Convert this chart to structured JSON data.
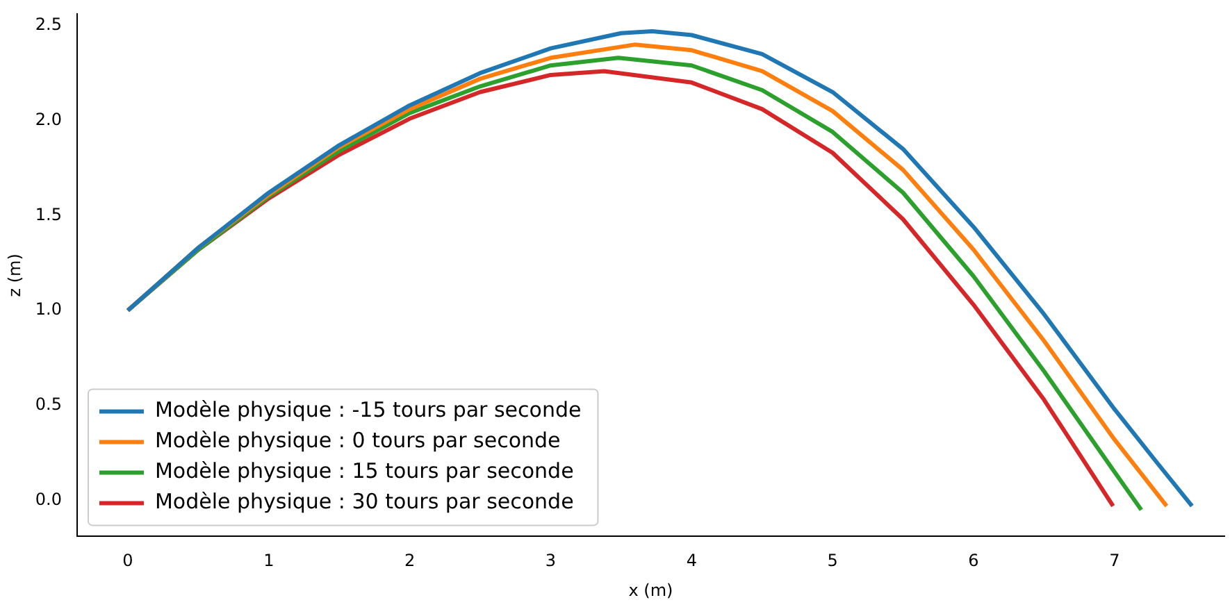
{
  "chart_data": {
    "type": "line",
    "xlabel": "x (m)",
    "ylabel": "z (m)",
    "xlim": [
      -0.36,
      7.78
    ],
    "ylim": [
      -0.19,
      2.56
    ],
    "xticks": [
      0,
      1,
      2,
      3,
      4,
      5,
      6,
      7
    ],
    "yticks": [
      {
        "value": 0,
        "label": "0.0"
      },
      {
        "value": 0.5,
        "label": "0.5"
      },
      {
        "value": 1,
        "label": "1.0"
      },
      {
        "value": 1.5,
        "label": "1.5"
      },
      {
        "value": 2,
        "label": "2.0"
      },
      {
        "value": 2.5,
        "label": "2.5"
      }
    ],
    "grid": false,
    "legend": "bottom left",
    "marker": "none",
    "line_style": "solid",
    "series": [
      {
        "name": "Modèle physique : -15 tours par seconde",
        "color": "#1f77b4",
        "x": [
          0,
          0.5,
          1,
          1.5,
          2,
          2.5,
          3,
          3.5,
          3.72,
          4,
          4.5,
          5,
          5.5,
          6,
          6.5,
          7,
          7.3,
          7.55
        ],
        "values": [
          1,
          1.33,
          1.62,
          1.87,
          2.08,
          2.25,
          2.38,
          2.46,
          2.47,
          2.45,
          2.35,
          2.15,
          1.85,
          1.44,
          0.98,
          0.48,
          0.2,
          -0.03
        ]
      },
      {
        "name": "Modèle physique : 0 tours par seconde",
        "color": "#ff7f0e",
        "x": [
          0,
          0.5,
          1,
          1.5,
          2,
          2.5,
          3,
          3.6,
          4,
          4.5,
          5,
          5.5,
          6,
          6.5,
          7,
          7.37
        ],
        "values": [
          1,
          1.33,
          1.61,
          1.86,
          2.06,
          2.22,
          2.33,
          2.4,
          2.37,
          2.26,
          2.05,
          1.74,
          1.32,
          0.84,
          0.32,
          -0.03
        ]
      },
      {
        "name": "Modèle physique : 15 tours par seconde",
        "color": "#2ca02c",
        "x": [
          0,
          0.5,
          1,
          1.5,
          2,
          2.5,
          3,
          3.48,
          4,
          4.5,
          5,
          5.5,
          6,
          6.5,
          7,
          7.19
        ],
        "values": [
          1,
          1.32,
          1.6,
          1.84,
          2.04,
          2.18,
          2.29,
          2.33,
          2.29,
          2.16,
          1.94,
          1.62,
          1.18,
          0.68,
          0.15,
          -0.05
        ]
      },
      {
        "name": "Modèle physique : 30 tours par seconde",
        "color": "#d62728",
        "x": [
          0,
          0.5,
          1,
          1.5,
          2,
          2.5,
          3,
          3.38,
          4,
          4.5,
          5,
          5.5,
          6,
          6.5,
          6.99
        ],
        "values": [
          1,
          1.32,
          1.59,
          1.82,
          2.01,
          2.15,
          2.24,
          2.26,
          2.2,
          2.06,
          1.83,
          1.48,
          1.03,
          0.53,
          -0.03
        ]
      }
    ]
  }
}
